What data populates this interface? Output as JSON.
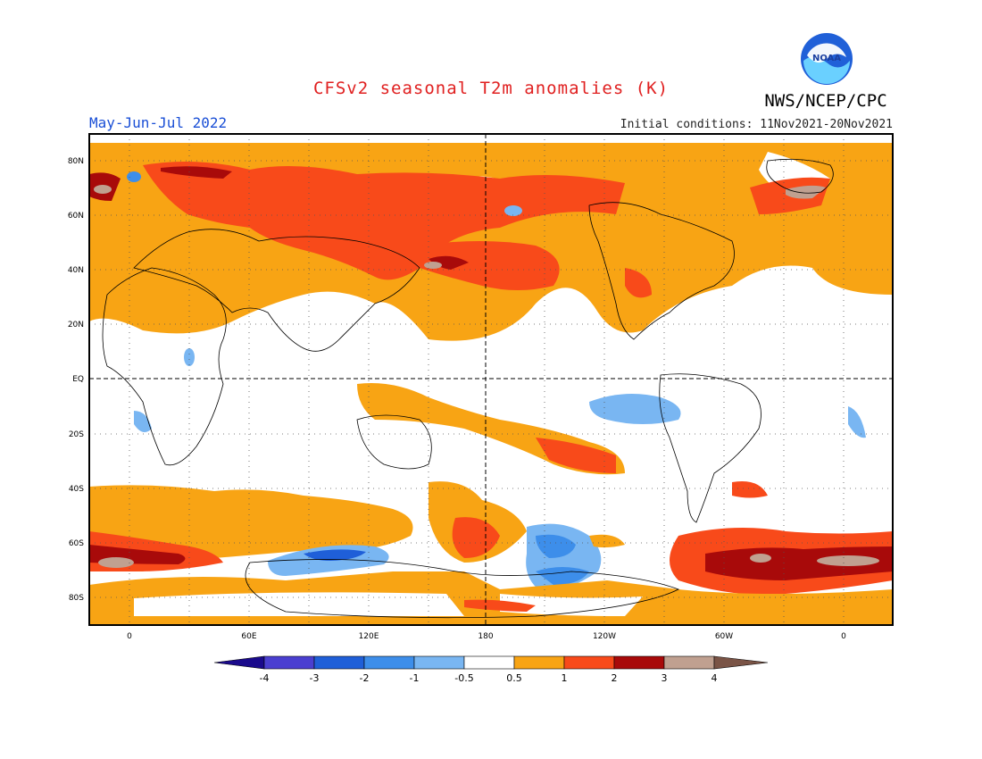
{
  "header": {
    "title": "CFSv2 seasonal T2m anomalies (K)",
    "period": "May-Jun-Jul 2022",
    "initial_conditions": "Initial conditions: 11Nov2021-20Nov2021",
    "agency": "NWS/NCEP/CPC",
    "logo_text": "NOAA"
  },
  "colors": {
    "title": "#e02020",
    "period": "#1a4fd6",
    "logo_outer": "#2060d8",
    "logo_inner": "#6ad0ff",
    "land_outline": "#000000"
  },
  "map": {
    "lat_labels": [
      "80N",
      "60N",
      "40N",
      "20N",
      "EQ",
      "20S",
      "40S",
      "60S",
      "80S"
    ],
    "lon_labels": [
      "0",
      "60E",
      "120E",
      "180",
      "120W",
      "60W",
      "0"
    ]
  },
  "colorbar": {
    "bins": [
      {
        "color": "#1a0a8c"
      },
      {
        "color": "#4a3fd0"
      },
      {
        "color": "#1f5fd8"
      },
      {
        "color": "#3d8eea"
      },
      {
        "color": "#79b6f2"
      },
      {
        "color": "#ffffff"
      },
      {
        "color": "#f8a414"
      },
      {
        "color": "#f84a1a"
      },
      {
        "color": "#a80a0a"
      },
      {
        "color": "#c0a090"
      },
      {
        "color": "#7a5446"
      }
    ],
    "labels": [
      "-4",
      "-3",
      "-2",
      "-1",
      "-0.5",
      "0.5",
      "1",
      "2",
      "3",
      "4"
    ]
  }
}
